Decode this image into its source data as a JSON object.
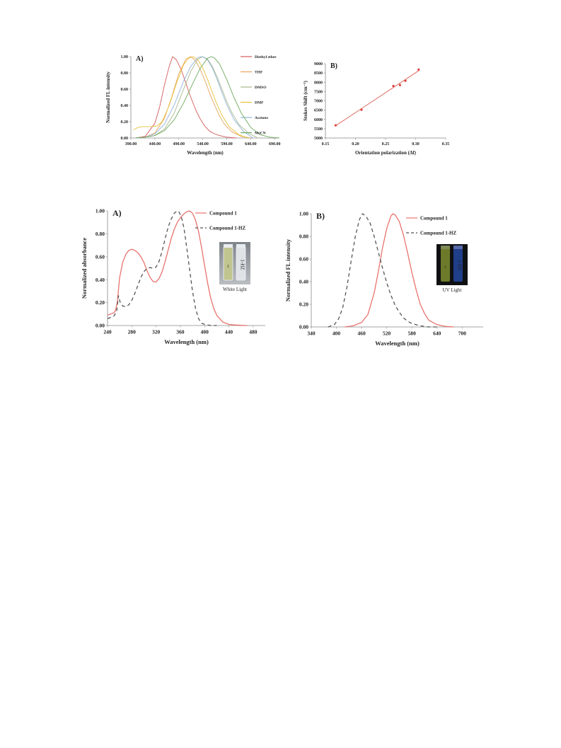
{
  "chart_data": [
    {
      "type": "line",
      "panel_label": "A)",
      "xlabel": "Wavelength (nm)",
      "ylabel": "Normalized FL intensity",
      "xlim": [
        390,
        700
      ],
      "ylim": [
        0,
        1.0
      ],
      "xticks": [
        "390.00",
        "440.00",
        "490.00",
        "540.00",
        "590.00",
        "640.00",
        "690.00"
      ],
      "yticks": [
        "0.00",
        "0.20",
        "0.40",
        "0.60",
        "0.80",
        "1.00"
      ],
      "xtick_values": [
        390,
        440,
        490,
        540,
        590,
        640,
        690
      ],
      "ytick_values": [
        0,
        0.2,
        0.4,
        0.6,
        0.8,
        1.0
      ],
      "legend_position": "right",
      "series": [
        {
          "name": "Diethyl ether",
          "color": "#d45a5a",
          "x": [
            400,
            420,
            440,
            450,
            460,
            470,
            477,
            485,
            495,
            505,
            515,
            525,
            535,
            545,
            555,
            565,
            575,
            590,
            610
          ],
          "y": [
            0.0,
            0.02,
            0.18,
            0.38,
            0.65,
            0.88,
            1.0,
            0.96,
            0.84,
            0.67,
            0.5,
            0.35,
            0.23,
            0.14,
            0.08,
            0.05,
            0.03,
            0.01,
            0.0
          ]
        },
        {
          "name": "THF",
          "color": "#e8a25a",
          "x": [
            400,
            420,
            440,
            460,
            475,
            490,
            505,
            515,
            525,
            535,
            545,
            555,
            565,
            575,
            585,
            600,
            620,
            640
          ],
          "y": [
            0.0,
            0.01,
            0.06,
            0.24,
            0.5,
            0.79,
            0.97,
            1.0,
            0.95,
            0.84,
            0.7,
            0.54,
            0.4,
            0.27,
            0.17,
            0.08,
            0.02,
            0.0
          ]
        },
        {
          "name": "DMSO",
          "color": "#a8b88a",
          "x": [
            400,
            420,
            440,
            460,
            480,
            500,
            515,
            530,
            540,
            550,
            560,
            570,
            580,
            590,
            600,
            615,
            635,
            655
          ],
          "y": [
            0.0,
            0.01,
            0.03,
            0.11,
            0.3,
            0.6,
            0.82,
            0.97,
            1.0,
            0.97,
            0.88,
            0.75,
            0.6,
            0.45,
            0.32,
            0.17,
            0.06,
            0.0
          ]
        },
        {
          "name": "DMF",
          "color": "#e6c23a",
          "x": [
            395,
            405,
            415,
            425,
            435,
            445,
            455,
            470,
            485,
            500,
            510,
            520,
            530,
            540,
            550,
            560,
            570,
            580,
            595,
            615,
            635
          ],
          "y": [
            0.1,
            0.13,
            0.14,
            0.14,
            0.14,
            0.15,
            0.2,
            0.4,
            0.67,
            0.9,
            0.98,
            1.0,
            0.96,
            0.86,
            0.72,
            0.56,
            0.41,
            0.28,
            0.14,
            0.04,
            0.0
          ]
        },
        {
          "name": "Acetone",
          "color": "#8fb3d9",
          "x": [
            400,
            420,
            440,
            460,
            480,
            500,
            515,
            530,
            540,
            550,
            560,
            570,
            580,
            590,
            605,
            625,
            645
          ],
          "y": [
            0.0,
            0.01,
            0.05,
            0.17,
            0.4,
            0.7,
            0.88,
            0.99,
            1.0,
            0.96,
            0.86,
            0.72,
            0.56,
            0.41,
            0.23,
            0.08,
            0.0
          ]
        },
        {
          "name": "MeCN",
          "color": "#6eaa5e",
          "x": [
            400,
            420,
            440,
            460,
            480,
            500,
            520,
            535,
            550,
            558,
            565,
            575,
            590,
            605,
            620,
            640,
            660,
            680,
            700
          ],
          "y": [
            0.0,
            0.01,
            0.03,
            0.09,
            0.22,
            0.43,
            0.68,
            0.86,
            0.98,
            1.0,
            0.98,
            0.91,
            0.72,
            0.5,
            0.31,
            0.13,
            0.04,
            0.01,
            0.0
          ]
        }
      ]
    },
    {
      "type": "scatter",
      "panel_label": "B)",
      "xlabel": "Orientation polarization (Δf)",
      "ylabel": "Stokes Shift (cm⁻¹)",
      "xlim": [
        0.15,
        0.35
      ],
      "ylim": [
        5000,
        9000
      ],
      "xticks": [
        "0.15",
        "0.20",
        "0.25",
        "0.30",
        "0.35"
      ],
      "yticks": [
        "5000",
        "5500",
        "6000",
        "6500",
        "7000",
        "7500",
        "8000",
        "8500",
        "9000"
      ],
      "xtick_values": [
        0.15,
        0.2,
        0.25,
        0.3,
        0.35
      ],
      "ytick_values": [
        5000,
        5500,
        6000,
        6500,
        7000,
        7500,
        8000,
        8500,
        9000
      ],
      "point_color": "#d94040",
      "series": [
        {
          "name": "",
          "x": [
            0.167,
            0.21,
            0.263,
            0.274,
            0.283,
            0.305
          ],
          "y": [
            5680,
            6520,
            7800,
            7850,
            8080,
            8680
          ]
        }
      ],
      "fit_line": {
        "x": [
          0.167,
          0.305
        ],
        "y": [
          5660,
          8620
        ]
      }
    },
    {
      "type": "line",
      "panel_label": "A)",
      "xlabel": "Wavelength (nm)",
      "ylabel": "Normalized absorbance",
      "xlim": [
        240,
        500
      ],
      "ylim": [
        0,
        1.0
      ],
      "xticks": [
        "240",
        "280",
        "320",
        "360",
        "400",
        "440",
        "480"
      ],
      "yticks": [
        "0.00",
        "0.20",
        "0.40",
        "0.60",
        "0.80",
        "1.00"
      ],
      "xtick_values": [
        240,
        280,
        320,
        360,
        400,
        440,
        480
      ],
      "ytick_values": [
        0,
        0.2,
        0.4,
        0.6,
        0.8,
        1.0
      ],
      "legend_position": "top-right",
      "series": [
        {
          "name": "Compound 1",
          "color": "#e8736e",
          "dash": "",
          "x": [
            240,
            245,
            250,
            253,
            256,
            260,
            265,
            270,
            275,
            280,
            285,
            290,
            295,
            300,
            305,
            310,
            315,
            320,
            325,
            330,
            335,
            340,
            345,
            350,
            355,
            360,
            365,
            370,
            375,
            380,
            385,
            390,
            395,
            400,
            405,
            410,
            415,
            420,
            430,
            440,
            450,
            460,
            470
          ],
          "y": [
            0.09,
            0.1,
            0.11,
            0.13,
            0.2,
            0.42,
            0.55,
            0.62,
            0.655,
            0.665,
            0.655,
            0.635,
            0.6,
            0.55,
            0.48,
            0.42,
            0.385,
            0.38,
            0.41,
            0.47,
            0.56,
            0.66,
            0.76,
            0.84,
            0.9,
            0.94,
            0.97,
            0.99,
            1.0,
            0.98,
            0.92,
            0.82,
            0.68,
            0.52,
            0.37,
            0.24,
            0.15,
            0.09,
            0.03,
            0.01,
            0.005,
            0.002,
            0.0
          ]
        },
        {
          "name": "Compound 1-HZ",
          "color": "#555555",
          "dash": "5,4",
          "x": [
            240,
            245,
            250,
            255,
            258,
            261,
            265,
            270,
            275,
            280,
            285,
            290,
            295,
            300,
            305,
            310,
            315,
            320,
            325,
            330,
            335,
            340,
            345,
            350,
            355,
            358,
            362,
            366,
            370,
            375,
            380,
            385,
            390,
            395,
            400,
            410,
            420
          ],
          "y": [
            0.06,
            0.07,
            0.08,
            0.12,
            0.26,
            0.2,
            0.17,
            0.165,
            0.18,
            0.22,
            0.28,
            0.35,
            0.42,
            0.47,
            0.5,
            0.505,
            0.5,
            0.51,
            0.56,
            0.65,
            0.76,
            0.86,
            0.93,
            0.98,
            1.0,
            0.99,
            0.94,
            0.85,
            0.7,
            0.5,
            0.3,
            0.15,
            0.06,
            0.02,
            0.01,
            0.0,
            0.0
          ]
        }
      ]
    },
    {
      "type": "line",
      "panel_label": "B)",
      "xlabel": "Wavelength (nm)",
      "ylabel": "Normalized  FL intensity",
      "xlim": [
        340,
        750
      ],
      "ylim": [
        0,
        1.0
      ],
      "xticks": [
        "340",
        "400",
        "460",
        "520",
        "580",
        "640",
        "700"
      ],
      "yticks": [
        "0.00",
        "0.20",
        "0.40",
        "0.60",
        "0.80",
        "1.00"
      ],
      "xtick_values": [
        340,
        400,
        460,
        520,
        580,
        640,
        700
      ],
      "ytick_values": [
        0,
        0.2,
        0.4,
        0.6,
        0.8,
        1.0
      ],
      "legend_position": "top-right",
      "series": [
        {
          "name": "Compound 1",
          "color": "#e8736e",
          "dash": "",
          "x": [
            420,
            440,
            460,
            475,
            490,
            500,
            510,
            520,
            530,
            535,
            540,
            550,
            560,
            570,
            580,
            590,
            600,
            610,
            620,
            640,
            660,
            680
          ],
          "y": [
            0.0,
            0.01,
            0.04,
            0.11,
            0.3,
            0.49,
            0.7,
            0.87,
            0.98,
            1.0,
            0.99,
            0.93,
            0.81,
            0.65,
            0.48,
            0.33,
            0.2,
            0.12,
            0.06,
            0.02,
            0.005,
            0.0
          ]
        },
        {
          "name": "Compound 1-HZ",
          "color": "#555555",
          "dash": "5,4",
          "x": [
            380,
            395,
            405,
            415,
            425,
            435,
            445,
            455,
            462,
            470,
            480,
            490,
            500,
            510,
            520,
            530,
            540,
            550,
            560,
            570,
            580,
            600,
            620,
            640
          ],
          "y": [
            0.0,
            0.02,
            0.07,
            0.17,
            0.35,
            0.58,
            0.8,
            0.95,
            1.0,
            0.98,
            0.92,
            0.8,
            0.66,
            0.52,
            0.39,
            0.28,
            0.19,
            0.13,
            0.08,
            0.05,
            0.03,
            0.01,
            0.0,
            0.0
          ]
        }
      ]
    }
  ],
  "photos": {
    "white": {
      "caption": "White Light",
      "vial1": "1",
      "vial2": "1-HZ"
    },
    "uv": {
      "caption": "UV Light",
      "vial1": "1",
      "vial2": "1-HZ"
    }
  }
}
